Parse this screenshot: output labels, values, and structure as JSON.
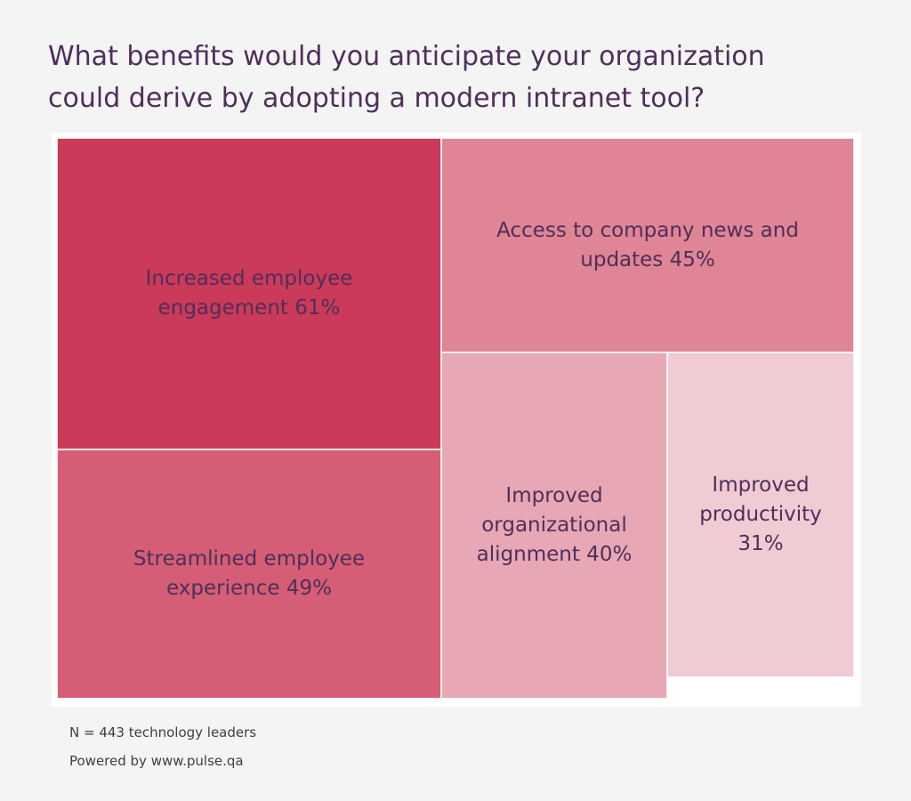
{
  "title_lines": [
    "What benefits would you anticipate your organization",
    "could derive by adopting a modern intranet tool?"
  ],
  "chart_data": {
    "type": "treemap",
    "title": "What benefits would you anticipate your organization could derive by adopting a modern intranet tool?",
    "unit": "%",
    "items": [
      {
        "label_lines": [
          "Increased employee",
          "engagement 61%"
        ],
        "value": 61,
        "color": "#cb3a59"
      },
      {
        "label_lines": [
          "Streamlined employee",
          "experience 49%"
        ],
        "value": 49,
        "color": "#d55e76"
      },
      {
        "label_lines": [
          "Access to company news and",
          "updates 45%"
        ],
        "value": 45,
        "color": "#df8595"
      },
      {
        "label_lines": [
          "Improved",
          "organizational",
          "alignment 40%"
        ],
        "value": 40,
        "color": "#e8a7b4"
      },
      {
        "label_lines": [
          "Improved",
          "productivity",
          "31%"
        ],
        "value": 31,
        "color": "#f0cbd3"
      }
    ]
  },
  "footnotes": {
    "sample": "N = 443 technology leaders",
    "powered_by": "Powered by www.pulse.qa"
  }
}
